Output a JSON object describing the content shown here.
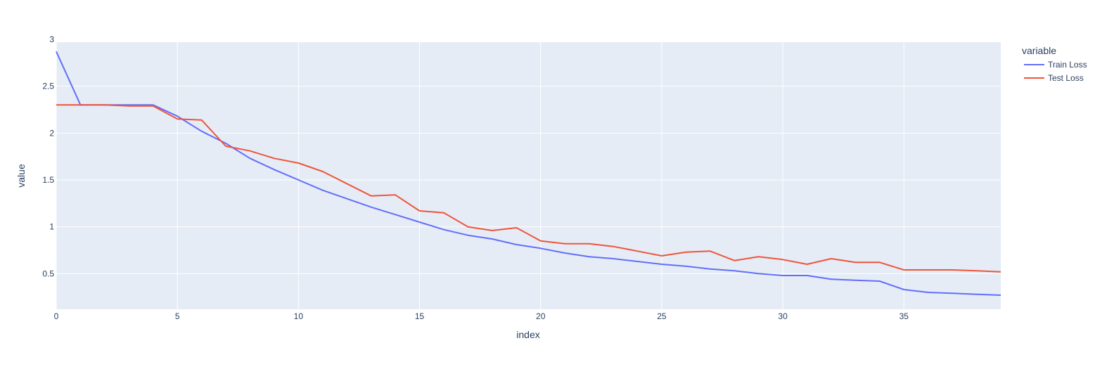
{
  "chart_data": {
    "type": "line",
    "title": "",
    "xlabel": "index",
    "ylabel": "value",
    "xlim": [
      0,
      39
    ],
    "ylim": [
      0.12,
      2.97
    ],
    "x_ticks": [
      0,
      5,
      10,
      15,
      20,
      25,
      30,
      35
    ],
    "y_ticks": [
      0.5,
      1,
      1.5,
      2,
      2.5,
      3
    ],
    "x_tick_labels": [
      "0",
      "5",
      "10",
      "15",
      "20",
      "25",
      "30",
      "35"
    ],
    "y_tick_labels": [
      "0.5",
      "1",
      "1.5",
      "2",
      "2.5",
      "3"
    ],
    "grid": true,
    "legend_title": "variable",
    "legend_position": "top-right, outside plot",
    "colors": {
      "plot_background": "#E5ECF6",
      "grid": "#ffffff",
      "text": "#2a3f5f"
    },
    "x": [
      0,
      1,
      2,
      3,
      4,
      5,
      6,
      7,
      8,
      9,
      10,
      11,
      12,
      13,
      14,
      15,
      16,
      17,
      18,
      19,
      20,
      21,
      22,
      23,
      24,
      25,
      26,
      27,
      28,
      29,
      30,
      31,
      32,
      33,
      34,
      35,
      36,
      37,
      38,
      39
    ],
    "series": [
      {
        "name": "Train Loss",
        "color": "#636efa",
        "values": [
          2.87,
          2.3,
          2.3,
          2.3,
          2.3,
          2.18,
          2.02,
          1.89,
          1.73,
          1.61,
          1.5,
          1.39,
          1.3,
          1.21,
          1.13,
          1.05,
          0.97,
          0.91,
          0.87,
          0.81,
          0.77,
          0.72,
          0.68,
          0.66,
          0.63,
          0.6,
          0.58,
          0.55,
          0.53,
          0.5,
          0.48,
          0.48,
          0.44,
          0.43,
          0.42,
          0.33,
          0.3,
          0.29,
          0.28,
          0.27
        ]
      },
      {
        "name": "Test Loss",
        "color": "#EF553B",
        "values": [
          2.3,
          2.3,
          2.3,
          2.29,
          2.29,
          2.15,
          2.14,
          1.86,
          1.81,
          1.73,
          1.68,
          1.59,
          1.46,
          1.33,
          1.34,
          1.17,
          1.15,
          1.0,
          0.96,
          0.99,
          0.85,
          0.82,
          0.82,
          0.79,
          0.74,
          0.69,
          0.73,
          0.74,
          0.64,
          0.68,
          0.65,
          0.6,
          0.66,
          0.62,
          0.62,
          0.54,
          0.54,
          0.54,
          0.53,
          0.52
        ]
      }
    ]
  }
}
